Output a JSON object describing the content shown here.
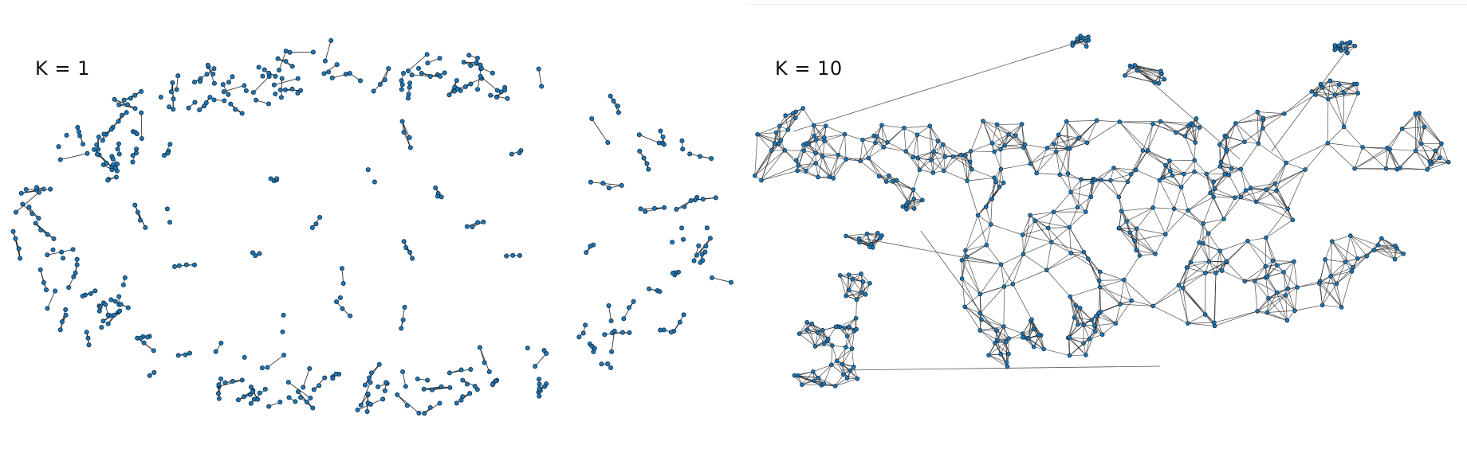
{
  "panels": [
    {
      "id": "left",
      "label": "K = 1"
    },
    {
      "id": "right",
      "label": "K = 10"
    }
  ],
  "colors": {
    "node": "#1f77b4",
    "node_stroke": "#0b2a44",
    "edge": "#111111"
  }
}
